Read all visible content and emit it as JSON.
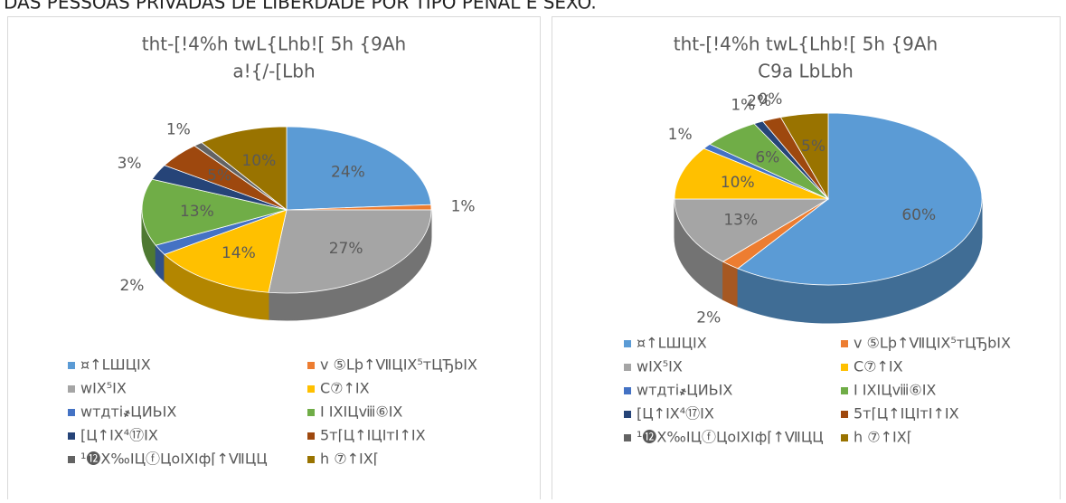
{
  "page_title": "DAS PESSOAS PRIVADAS DE LIBERDADE POR TIPO PENAL E SEXO.",
  "chart_data": [
    {
      "type": "pie",
      "title": [
        "tht-[!4%h twL{Lhb![ 5h {9Ah",
        "a!{/-[Lbh"
      ],
      "categories": [
        "¤↑LШЦIX",
        "v ⑤Lþ↑ⅦЦIX⁵тЦЂbIX",
        "wIX⁵IX",
        "C⑦↑IX",
        "wтдтi҂ЦИЬIX",
        "I IXIЦⅷ⑥IX",
        "[Ц↑IX⁴⑰IX",
        "5т⌈Ц↑IЦIтI↑IX",
        "¹⓬X‰IЦⓕЦoIXIф⌈↑ⅦЦЦ",
        "h ⑦↑IX⌈"
      ],
      "values": [
        24,
        1,
        27,
        14,
        2,
        13,
        3,
        5,
        1,
        10
      ],
      "value_labels": [
        "24%",
        "1%",
        "27%",
        "14%",
        "2%",
        "13%",
        "3%",
        "5%",
        "1%",
        "10%"
      ],
      "colors": [
        "#5b9bd5",
        "#ed7d31",
        "#a5a5a5",
        "#ffc000",
        "#4472c4",
        "#70ad47",
        "#264478",
        "#9e480e",
        "#636363",
        "#997300"
      ]
    },
    {
      "type": "pie",
      "title": [
        "tht-[!4%h twL{Lhb![ 5h {9Ah",
        "C9a LbLbh"
      ],
      "categories": [
        "¤↑LШЦIX",
        "v ⑤Lþ↑ⅦЦIX⁵тЦЂbIX",
        "wIX⁵IX",
        "C⑦↑IX",
        "wтдтi҂ЦИЬIX",
        "I IXIЦⅷ⑥IX",
        "[Ц↑IX⁴⑰IX",
        "5т⌈Ц↑IЦIтI↑IX",
        "¹⓬X‰IЦⓕЦoIXIф⌈↑ⅦЦЦ",
        "h ⑦↑IX⌈"
      ],
      "values": [
        60,
        2,
        13,
        10,
        1,
        6,
        1,
        2,
        0,
        5
      ],
      "value_labels": [
        "60%",
        "2%",
        "13%",
        "10%",
        "1%",
        "6%",
        "1%",
        "2%",
        "0%",
        "5%"
      ],
      "colors": [
        "#5b9bd5",
        "#ed7d31",
        "#a5a5a5",
        "#ffc000",
        "#4472c4",
        "#70ad47",
        "#264478",
        "#9e480e",
        "#636363",
        "#997300"
      ]
    }
  ]
}
